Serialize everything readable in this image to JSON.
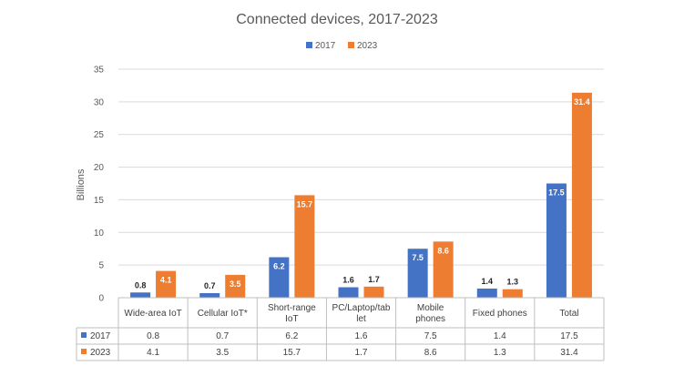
{
  "chart_data": {
    "type": "bar",
    "title": "Connected devices, 2017-2023",
    "ylabel": "Billions",
    "ylim": [
      0,
      35
    ],
    "yticks": [
      0,
      5,
      10,
      15,
      20,
      25,
      30,
      35
    ],
    "grid": true,
    "legend_position": "top",
    "categories": [
      [
        "Wide-area IoT"
      ],
      [
        "Cellular IoT*"
      ],
      [
        "Short-range",
        "IoT"
      ],
      [
        "PC/Laptop/tab",
        "let"
      ],
      [
        "Mobile",
        "phones"
      ],
      [
        "Fixed phones"
      ],
      [
        "Total"
      ]
    ],
    "series": [
      {
        "name": "2017",
        "color": "#4472C4",
        "values": [
          0.8,
          0.7,
          6.2,
          1.6,
          7.5,
          1.4,
          17.5
        ]
      },
      {
        "name": "2023",
        "color": "#ED7D31",
        "values": [
          4.1,
          3.5,
          15.7,
          1.7,
          8.6,
          1.3,
          31.4
        ]
      }
    ],
    "data_table": true
  }
}
